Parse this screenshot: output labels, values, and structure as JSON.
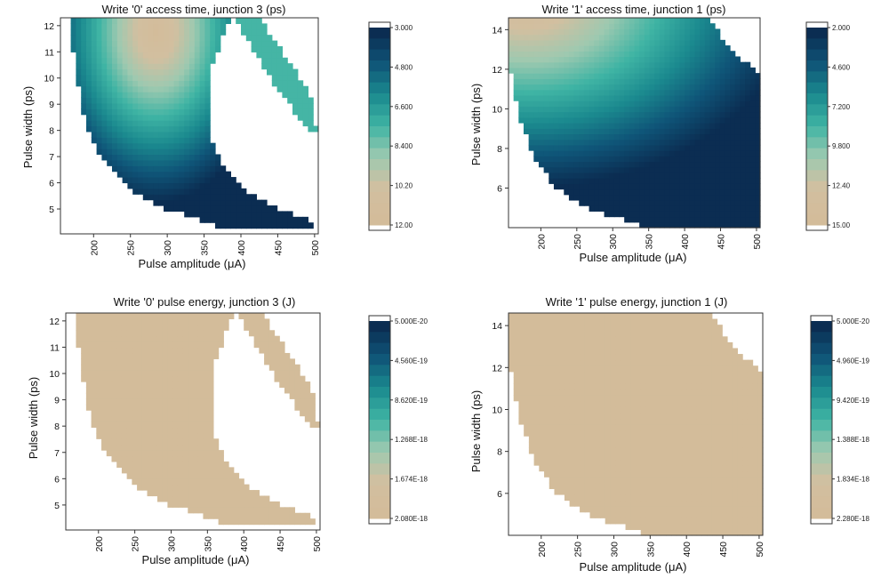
{
  "figure_title": "",
  "chart_data": [
    {
      "type": "heatmap",
      "title": "Write '0' access time, junction 3 (ps)",
      "xlabel": "Pulse amplitude (μA)",
      "ylabel": "Pulse width (ps)",
      "xlim": [
        155,
        505
      ],
      "ylim": [
        4.05,
        12.3
      ],
      "x_ticks": [
        200,
        250,
        300,
        350,
        400,
        450,
        500
      ],
      "y_ticks": [
        5,
        6,
        7,
        8,
        9,
        10,
        11,
        12
      ],
      "colorbar": {
        "labels": [
          "3.000",
          "4.800",
          "6.600",
          "8.400",
          "10.20",
          "12.00"
        ],
        "min": 3.0,
        "max": 12.0
      },
      "color_scale": [
        "#0b2d52",
        "#0f5578",
        "#1b8a8f",
        "#3fb4a4",
        "#9ec9b0",
        "#d2bfa0",
        "#d3bc9a"
      ],
      "value_field": {
        "mode": "access",
        "center_x": 285,
        "center_y": 11.8,
        "scale_x": 155,
        "scale_y": 6.5,
        "min": 3.0,
        "max": 12.0
      },
      "valid_region": {
        "rows": [
          {
            "y": 4.25,
            "x_min": 380,
            "x_max": 500
          },
          {
            "y": 4.5,
            "x_min": 355,
            "x_max": 500
          },
          {
            "y": 5.0,
            "x_min": 300,
            "x_max": 450
          },
          {
            "y": 5.5,
            "x_min": 265,
            "x_max": 415
          },
          {
            "y": 6.0,
            "x_min": 240,
            "x_max": 395
          },
          {
            "y": 6.5,
            "x_min": 225,
            "x_max": 380
          },
          {
            "y": 7.0,
            "x_min": 210,
            "x_max": 370
          },
          {
            "y": 7.5,
            "x_min": 200,
            "x_max": 360
          },
          {
            "y": 8.0,
            "x_min": 192,
            "x_max": 355
          },
          {
            "y": 9.0,
            "x_min": 184,
            "x_max": 355
          },
          {
            "y": 10.0,
            "x_min": 177,
            "x_max": 355
          },
          {
            "y": 11.0,
            "x_min": 172,
            "x_max": 368
          },
          {
            "y": 12.0,
            "x_min": 170,
            "x_max": 380
          },
          {
            "y": 12.3,
            "x_min": 170,
            "x_max": 390
          }
        ]
      },
      "secondary_region": {
        "rows": [
          {
            "y": 7.9,
            "x_min": 492,
            "x_max": 502
          },
          {
            "y": 9.0,
            "x_min": 465,
            "x_max": 500
          },
          {
            "y": 10.0,
            "x_min": 440,
            "x_max": 480
          },
          {
            "y": 11.0,
            "x_min": 418,
            "x_max": 455
          },
          {
            "y": 12.0,
            "x_min": 398,
            "x_max": 432
          },
          {
            "y": 12.3,
            "x_min": 392,
            "x_max": 425
          }
        ],
        "value": 7.6
      }
    },
    {
      "type": "heatmap",
      "title": "Write '1' access time, junction 1 (ps)",
      "xlabel": "Pulse amplitude (μA)",
      "ylabel": "Pulse width (ps)",
      "xlim": [
        155,
        505
      ],
      "ylim": [
        4.0,
        14.6
      ],
      "x_ticks": [
        200,
        250,
        300,
        350,
        400,
        450,
        500
      ],
      "y_ticks": [
        6,
        8,
        10,
        12,
        14
      ],
      "colorbar": {
        "labels": [
          "2.000",
          "4.600",
          "7.200",
          "9.800",
          "12.40",
          "15.00"
        ],
        "min": 2.0,
        "max": 15.0
      },
      "color_scale": [
        "#0b2d52",
        "#0f5578",
        "#1b8a8f",
        "#3fb4a4",
        "#9ec9b0",
        "#d2bfa0",
        "#d3bc9a"
      ],
      "value_field": {
        "mode": "access",
        "center_x": 180,
        "center_y": 15.6,
        "scale_x": 370,
        "scale_y": 9.5,
        "min": 2.0,
        "max": 15.0
      },
      "valid_region": {
        "rows": [
          {
            "y": 4.1,
            "x_min": 340,
            "x_max": 505
          },
          {
            "y": 5.0,
            "x_min": 265,
            "x_max": 505
          },
          {
            "y": 6.0,
            "x_min": 222,
            "x_max": 505
          },
          {
            "y": 7.0,
            "x_min": 200,
            "x_max": 505
          },
          {
            "y": 8.0,
            "x_min": 186,
            "x_max": 505
          },
          {
            "y": 9.0,
            "x_min": 176,
            "x_max": 505
          },
          {
            "y": 10.0,
            "x_min": 168,
            "x_max": 505
          },
          {
            "y": 11.0,
            "x_min": 162,
            "x_max": 505
          },
          {
            "y": 11.8,
            "x_min": 158,
            "x_max": 505
          },
          {
            "y": 12.5,
            "x_min": 155,
            "x_max": 480
          },
          {
            "y": 13.5,
            "x_min": 155,
            "x_max": 455
          },
          {
            "y": 14.6,
            "x_min": 155,
            "x_max": 430
          }
        ]
      }
    },
    {
      "type": "heatmap",
      "title": "Write '0' pulse energy, junction 3 (J)",
      "xlabel": "Pulse amplitude (μA)",
      "ylabel": "Pulse width (ps)",
      "xlim": [
        155,
        505
      ],
      "ylim": [
        4.05,
        12.3
      ],
      "x_ticks": [
        200,
        250,
        300,
        350,
        400,
        450,
        500
      ],
      "y_ticks": [
        5,
        6,
        7,
        8,
        9,
        10,
        11,
        12
      ],
      "colorbar": {
        "labels": [
          "5.000E-20",
          "4.560E-19",
          "8.620E-19",
          "1.268E-18",
          "1.674E-18",
          "2.080E-18"
        ],
        "min": 5e-20,
        "max": 2.08e-18
      },
      "color_scale": [
        "#0b2d52",
        "#0f5578",
        "#1b8a8f",
        "#3fb4a4",
        "#9ec9b0",
        "#d2bfa0",
        "#d3bc9a"
      ],
      "value_field": {
        "mode": "energy",
        "exponent": 2,
        "scale": 6.5e-23,
        "min": 5e-20,
        "max": 2.08e-18
      },
      "valid_region": {
        "rows": [
          {
            "y": 4.25,
            "x_min": 380,
            "x_max": 500
          },
          {
            "y": 4.5,
            "x_min": 355,
            "x_max": 500
          },
          {
            "y": 5.0,
            "x_min": 300,
            "x_max": 450
          },
          {
            "y": 5.5,
            "x_min": 265,
            "x_max": 415
          },
          {
            "y": 6.0,
            "x_min": 240,
            "x_max": 395
          },
          {
            "y": 6.5,
            "x_min": 225,
            "x_max": 380
          },
          {
            "y": 7.0,
            "x_min": 210,
            "x_max": 370
          },
          {
            "y": 7.5,
            "x_min": 200,
            "x_max": 360
          },
          {
            "y": 8.0,
            "x_min": 192,
            "x_max": 355
          },
          {
            "y": 9.0,
            "x_min": 184,
            "x_max": 355
          },
          {
            "y": 10.0,
            "x_min": 177,
            "x_max": 355
          },
          {
            "y": 11.0,
            "x_min": 172,
            "x_max": 368
          },
          {
            "y": 12.0,
            "x_min": 170,
            "x_max": 380
          },
          {
            "y": 12.3,
            "x_min": 170,
            "x_max": 390
          }
        ]
      },
      "secondary_region": {
        "rows": [
          {
            "y": 7.9,
            "x_min": 492,
            "x_max": 502
          },
          {
            "y": 9.0,
            "x_min": 465,
            "x_max": 500
          },
          {
            "y": 10.0,
            "x_min": 440,
            "x_max": 480
          },
          {
            "y": 11.0,
            "x_min": 418,
            "x_max": 455
          },
          {
            "y": 12.0,
            "x_min": 398,
            "x_max": 432
          },
          {
            "y": 12.3,
            "x_min": 392,
            "x_max": 425
          }
        ],
        "value": 2.08e-18
      }
    },
    {
      "type": "heatmap",
      "title": "Write '1' pulse energy, junction 1 (J)",
      "xlabel": "Pulse amplitude (μA)",
      "ylabel": "Pulse width (ps)",
      "xlim": [
        155,
        505
      ],
      "ylim": [
        4.0,
        14.6
      ],
      "x_ticks": [
        200,
        250,
        300,
        350,
        400,
        450,
        500
      ],
      "y_ticks": [
        6,
        8,
        10,
        12,
        14
      ],
      "colorbar": {
        "labels": [
          "5.000E-20",
          "4.960E-19",
          "9.420E-19",
          "1.388E-18",
          "1.834E-18",
          "2.280E-18"
        ],
        "min": 5e-20,
        "max": 2.28e-18
      },
      "color_scale": [
        "#0b2d52",
        "#0f5578",
        "#1b8a8f",
        "#3fb4a4",
        "#9ec9b0",
        "#d2bfa0",
        "#d3bc9a"
      ],
      "value_field": {
        "mode": "energy",
        "exponent": 2,
        "scale": 7.4e-23,
        "min": 5e-20,
        "max": 2.28e-18
      },
      "valid_region": {
        "rows": [
          {
            "y": 4.1,
            "x_min": 340,
            "x_max": 505
          },
          {
            "y": 5.0,
            "x_min": 265,
            "x_max": 505
          },
          {
            "y": 6.0,
            "x_min": 222,
            "x_max": 505
          },
          {
            "y": 7.0,
            "x_min": 200,
            "x_max": 505
          },
          {
            "y": 8.0,
            "x_min": 186,
            "x_max": 505
          },
          {
            "y": 9.0,
            "x_min": 176,
            "x_max": 505
          },
          {
            "y": 10.0,
            "x_min": 168,
            "x_max": 505
          },
          {
            "y": 11.0,
            "x_min": 162,
            "x_max": 505
          },
          {
            "y": 11.8,
            "x_min": 158,
            "x_max": 505
          },
          {
            "y": 12.5,
            "x_min": 155,
            "x_max": 480
          },
          {
            "y": 13.5,
            "x_min": 155,
            "x_max": 455
          },
          {
            "y": 14.6,
            "x_min": 155,
            "x_max": 430
          }
        ]
      }
    }
  ]
}
